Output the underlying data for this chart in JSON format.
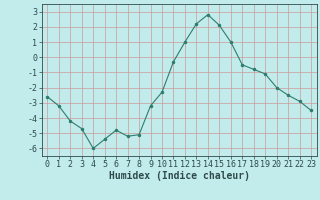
{
  "x": [
    0,
    1,
    2,
    3,
    4,
    5,
    6,
    7,
    8,
    9,
    10,
    11,
    12,
    13,
    14,
    15,
    16,
    17,
    18,
    19,
    20,
    21,
    22,
    23
  ],
  "y": [
    -2.6,
    -3.2,
    -4.2,
    -4.7,
    -6.0,
    -5.4,
    -4.8,
    -5.2,
    -5.1,
    -3.2,
    -2.3,
    -0.3,
    1.0,
    2.2,
    2.8,
    2.1,
    1.0,
    -0.5,
    -0.8,
    -1.1,
    -2.0,
    -2.5,
    -2.9,
    -3.5
  ],
  "xlabel": "Humidex (Indice chaleur)",
  "ylim": [
    -6.5,
    3.5
  ],
  "xlim": [
    -0.5,
    23.5
  ],
  "line_color": "#2e7d6e",
  "marker_color": "#2e7d6e",
  "bg_color": "#c2ecec",
  "grid_color": "#cc9999",
  "axis_color": "#2e4a4a",
  "tick_label_color": "#2e4a4a",
  "yticks": [
    -6,
    -5,
    -4,
    -3,
    -2,
    -1,
    0,
    1,
    2,
    3
  ],
  "tick_fontsize": 6.0,
  "xlabel_fontsize": 7.0
}
